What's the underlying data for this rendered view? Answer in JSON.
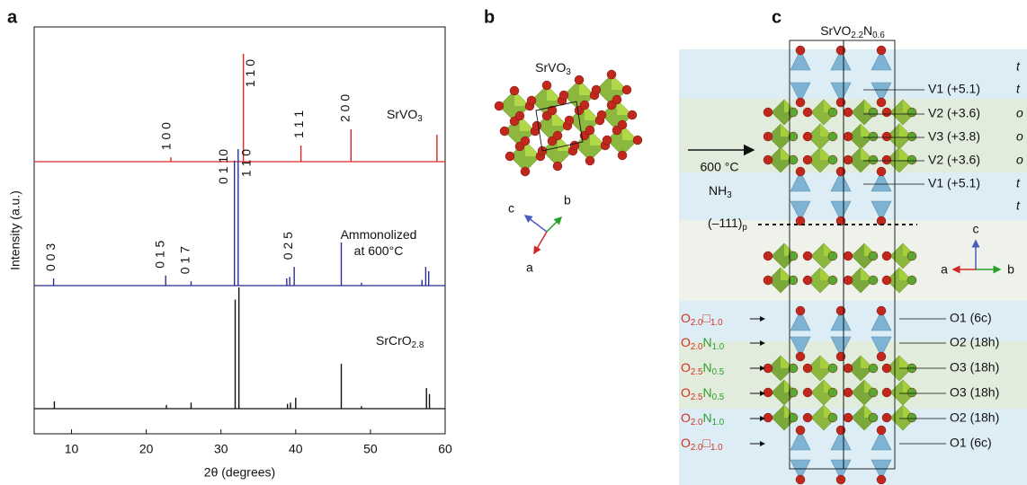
{
  "panel_letters": [
    "a",
    "b",
    "c"
  ],
  "chart_data": {
    "type": "stick",
    "xlabel": "2θ (degrees)",
    "ylabel": "Intensity (a.u.)",
    "xlim": [
      5,
      60
    ],
    "xticks": [
      10,
      20,
      30,
      40,
      50,
      60
    ],
    "ylim": [
      0,
      100
    ],
    "series": [
      {
        "name": [
          "SrVO",
          "3"
        ],
        "color": "#d62728",
        "x": [
          23.3,
          33.0,
          40.7,
          47.4,
          58.9
        ],
        "values": [
          4,
          100,
          15,
          30,
          25
        ],
        "peak_labels": [
          {
            "text": "1 0 0",
            "x": 23.3
          },
          {
            "text": "1 1 0",
            "x": 34.5
          },
          {
            "text": "1 1 1",
            "x": 41.0
          },
          {
            "text": "2 0 0",
            "x": 47.2
          }
        ]
      },
      {
        "name": [
          "Ammonolized\nat 600°C"
        ],
        "color": "#2b2f8f",
        "x": [
          7.6,
          22.6,
          26.0,
          31.8,
          32.3,
          38.8,
          39.2,
          39.8,
          46.1,
          48.8,
          56.9,
          57.4,
          57.8
        ],
        "values": [
          5,
          7,
          3,
          87,
          95,
          5,
          6,
          13,
          30,
          2,
          4,
          13,
          10
        ],
        "peak_labels": [
          {
            "text": "0 0 3",
            "x": 7.8
          },
          {
            "text": "0 1 5",
            "x": 22.4
          },
          {
            "text": "0 1 7",
            "x": 25.8
          },
          {
            "text": "0 1 10",
            "x": 30.9
          },
          {
            "text": "1 1 0",
            "x": 34.0
          },
          {
            "text": "0 2 5",
            "x": 39.6
          }
        ]
      },
      {
        "name": [
          "SrCrO",
          "2.8"
        ],
        "color": "#111111",
        "x": [
          7.7,
          22.7,
          26.0,
          31.9,
          32.4,
          38.9,
          39.3,
          40.0,
          46.1,
          48.8,
          57.5,
          57.9
        ],
        "values": [
          6,
          3,
          5,
          90,
          100,
          4,
          5,
          9,
          37,
          2,
          17,
          12
        ],
        "peak_labels": []
      }
    ]
  },
  "panel_b": {
    "title": [
      "SrVO",
      "3"
    ],
    "axes": {
      "c": "c",
      "b": "b",
      "a": "a"
    }
  },
  "panel_c": {
    "title": [
      "SrVO",
      "2.2",
      "N",
      "0.6"
    ],
    "arrow_top": "600 °C",
    "arrow_bottom": [
      "NH",
      "3"
    ],
    "plane": [
      "(–111)",
      "p"
    ],
    "v_rows": [
      {
        "sym": "t"
      },
      {
        "label": "V1 (+5.1)",
        "sym": "t"
      },
      {
        "label": "V2 (+3.6)",
        "sym": "o"
      },
      {
        "label": "V3 (+3.8)",
        "sym": "o"
      },
      {
        "label": "V2 (+3.6)",
        "sym": "o"
      },
      {
        "label": "V1 (+5.1)",
        "sym": "t"
      },
      {
        "sym": "t"
      }
    ],
    "o_layers": [
      {
        "left": [
          "O",
          "2.0",
          "□",
          "1.0"
        ],
        "right": "O1 (6c)"
      },
      {
        "left": [
          "O",
          "2.0",
          "N",
          "1.0"
        ],
        "right": "O2 (18h)"
      },
      {
        "left": [
          "O",
          "2.5",
          "N",
          "0.5"
        ],
        "right": "O3 (18h)"
      },
      {
        "left": [
          "O",
          "2.5",
          "N",
          "0.5"
        ],
        "right": "O3 (18h)"
      },
      {
        "left": [
          "O",
          "2.0",
          "N",
          "1.0"
        ],
        "right": "O2 (18h)"
      },
      {
        "left": [
          "O",
          "2.0",
          "□",
          "1.0"
        ],
        "right": "O1 (6c)"
      }
    ],
    "axes": {
      "c": "c",
      "a": "a",
      "b": "b"
    },
    "element_colors": {
      "O": "#d7301f",
      "N": "#2ca02c",
      "□": "#d7301f"
    },
    "site_color": "#2e9e3a"
  }
}
